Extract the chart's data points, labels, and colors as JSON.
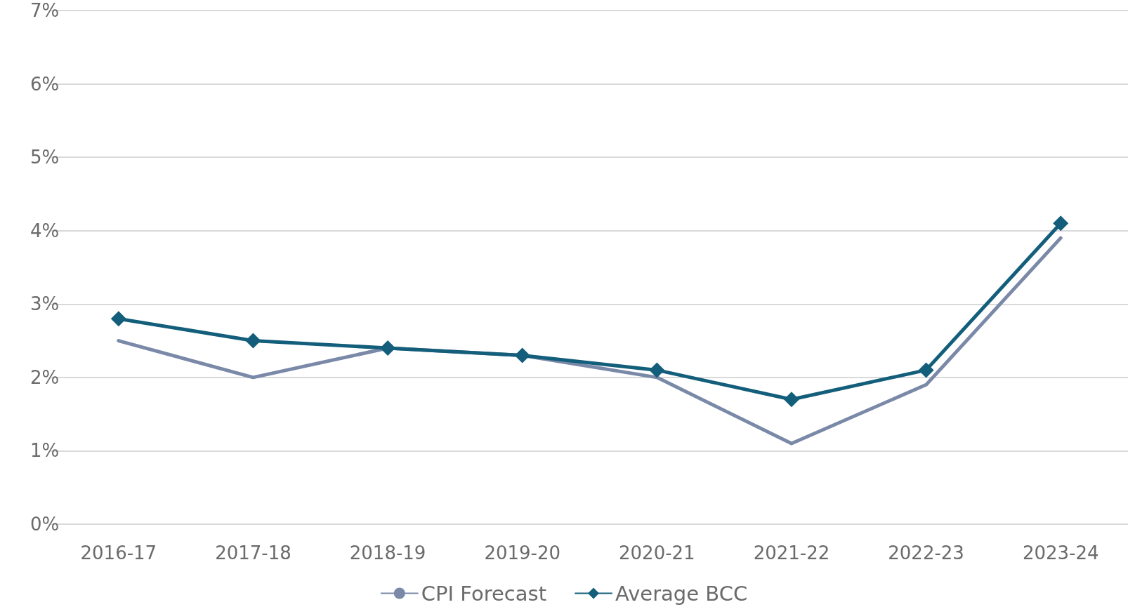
{
  "chart_data": {
    "type": "line",
    "categories": [
      "2016-17",
      "2017-18",
      "2018-19",
      "2019-20",
      "2020-21",
      "2021-22",
      "2022-23",
      "2023-24"
    ],
    "series": [
      {
        "name": "CPI Forecast",
        "color": "#7a89a8",
        "marker": "none",
        "values": [
          2.5,
          2.0,
          2.4,
          2.3,
          2.0,
          1.1,
          1.9,
          3.9
        ]
      },
      {
        "name": "Average BCC",
        "color": "#135e7a",
        "marker": "diamond",
        "values": [
          2.8,
          2.5,
          2.4,
          2.3,
          2.1,
          1.7,
          2.1,
          4.1
        ]
      }
    ],
    "ylim": [
      0,
      7
    ],
    "yticks": [
      {
        "value": 0,
        "label": "0%"
      },
      {
        "value": 1,
        "label": "1%"
      },
      {
        "value": 2,
        "label": "2%"
      },
      {
        "value": 3,
        "label": "3%"
      },
      {
        "value": 4,
        "label": "4%"
      },
      {
        "value": 5,
        "label": "5%"
      },
      {
        "value": 6,
        "label": "6%"
      },
      {
        "value": 7,
        "label": "7%"
      }
    ],
    "grid": "y",
    "legend": "bottom",
    "line_style": "solid"
  }
}
